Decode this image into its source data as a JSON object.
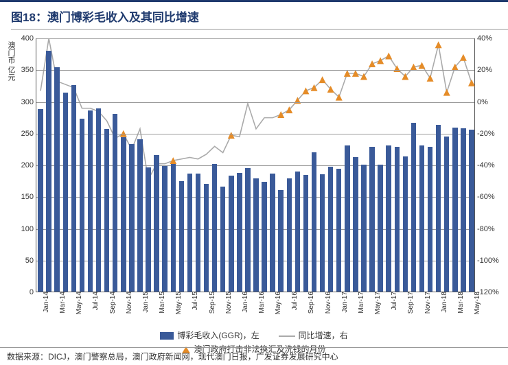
{
  "title": "图18：澳门博彩毛收入及其同比增速",
  "yaxis_left": {
    "title": "澳门币 亿元",
    "min": 0,
    "max": 400,
    "step": 50
  },
  "yaxis_right": {
    "min": -120,
    "max": 40,
    "step": 20
  },
  "chart": {
    "bar_color": "#3a5a99",
    "line_color": "#aaaaaa",
    "marker_color": "#e58c28",
    "grid_color": "#999999",
    "background": "#ffffff",
    "label_fontsize": 11,
    "title_fontsize": 17
  },
  "categories": [
    "Jan-14",
    "Feb-14",
    "Mar-14",
    "Apr-14",
    "May-14",
    "Jun-14",
    "Jul-14",
    "Aug-14",
    "Sep-14",
    "Oct-14",
    "Nov-14",
    "Dec-14",
    "Jan-15",
    "Feb-15",
    "Mar-15",
    "Apr-15",
    "May-15",
    "Jun-15",
    "Jul-15",
    "Aug-15",
    "Sep-15",
    "Oct-15",
    "Nov-15",
    "Dec-15",
    "Jan-16",
    "Feb-16",
    "Mar-16",
    "Apr-16",
    "May-16",
    "Jun-16",
    "Jul-16",
    "Aug-16",
    "Sep-16",
    "Oct-16",
    "Nov-16",
    "Dec-16",
    "Jan-17",
    "Feb-17",
    "Mar-17",
    "Apr-17",
    "May-17",
    "Jun-17",
    "Jul-17",
    "Aug-17",
    "Sep-17",
    "Oct-17",
    "Nov-17",
    "Dec-17",
    "Jan-18",
    "Feb-18",
    "Mar-18",
    "Apr-18",
    "May-18"
  ],
  "x_labels_shown": [
    "Jan-14",
    "Mar-14",
    "May-14",
    "Jul-14",
    "Sep-14",
    "Nov-14",
    "Jan-15",
    "Mar-15",
    "May-15",
    "Jul-15",
    "Sep-15",
    "Nov-15",
    "Jan-16",
    "Mar-16",
    "May-16",
    "Jul-16",
    "Sep-16",
    "Nov-16",
    "Jan-17",
    "Mar-17",
    "May-17",
    "Jul-17",
    "Sep-17",
    "Nov-17",
    "Jan-18",
    "Mar-18",
    "May-18"
  ],
  "bar_values": [
    288,
    380,
    353,
    314,
    325,
    272,
    285,
    289,
    256,
    280,
    243,
    232,
    240,
    196,
    215,
    198,
    201,
    174,
    186,
    186,
    170,
    201,
    165,
    183,
    187,
    195,
    178,
    173,
    186,
    160,
    178,
    189,
    184,
    220,
    185,
    197,
    193,
    230,
    212,
    200,
    228,
    200,
    230,
    228,
    213,
    266,
    230,
    228,
    263,
    244,
    258,
    257,
    255
  ],
  "line_values": [
    7,
    40,
    13,
    11,
    9,
    -4,
    -4,
    -6,
    -12,
    -23,
    -20,
    -30,
    -17,
    -49,
    -39,
    -39,
    -37,
    -36,
    -35,
    -36,
    -33,
    -28,
    -32,
    -21,
    -22,
    -1,
    -17,
    -10,
    -10,
    -8,
    -5,
    1,
    7,
    9,
    14,
    8,
    3,
    18,
    18,
    16,
    24,
    26,
    29,
    21,
    16,
    22,
    23,
    15,
    36,
    6,
    22,
    28,
    12
  ],
  "marker_months": [
    "Nov-14",
    "May-15",
    "Dec-15",
    "Jun-16",
    "Jul-16",
    "Aug-16",
    "Sep-16",
    "Oct-16",
    "Nov-16",
    "Dec-16",
    "Jan-17",
    "Feb-17",
    "Mar-17",
    "Apr-17",
    "May-17",
    "Jun-17",
    "Jul-17",
    "Aug-17",
    "Sep-17",
    "Oct-17",
    "Nov-17",
    "Dec-17",
    "Jan-18",
    "Feb-18",
    "Mar-18",
    "Apr-18",
    "May-18"
  ],
  "legend": {
    "bar": "博彩毛收入(GGR)，左",
    "line": "同比增速，右",
    "marker": "澳门政府打击非法换汇及洗钱的月份"
  },
  "source": "数据来源：DICJ，澳门警察总局，澳门政府新闻网，现代澳门日报，广发证券发展研究中心"
}
